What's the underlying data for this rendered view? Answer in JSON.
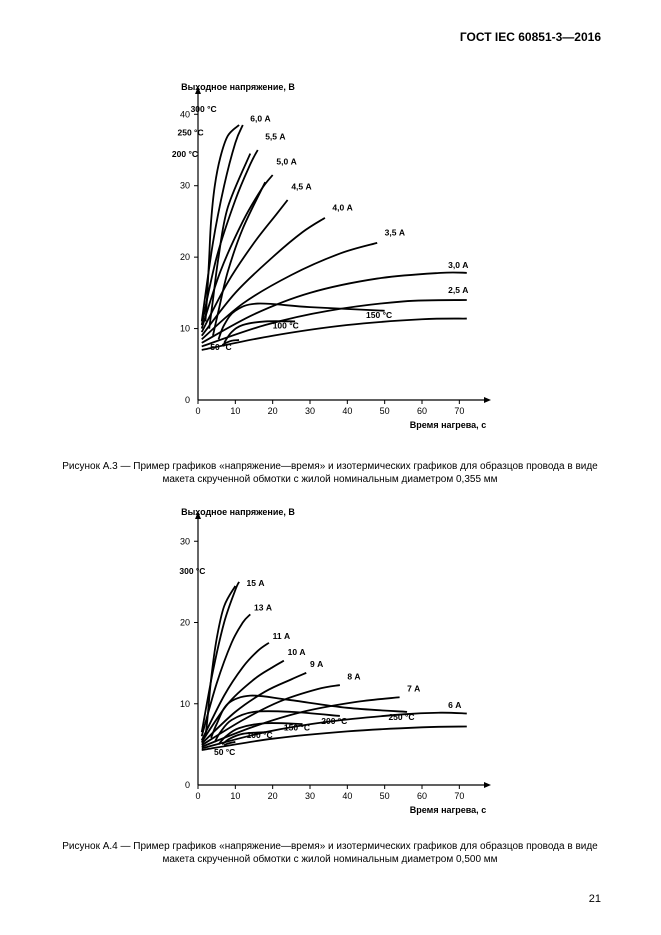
{
  "header": "ГОСТ IEC 60851-3—2016",
  "page_number": "21",
  "chart1": {
    "type": "line",
    "y_axis_label": "Выходное напряжение, В",
    "x_axis_label": "Время нагрева, с",
    "title_fontsize": 9,
    "label_fontsize": 9,
    "xlim": [
      0,
      75
    ],
    "ylim": [
      0,
      42
    ],
    "xticks": [
      0,
      10,
      20,
      30,
      40,
      50,
      60,
      70
    ],
    "yticks": [
      0,
      10,
      20,
      30,
      40
    ],
    "line_color": "#000000",
    "line_width": 1.8,
    "background_color": "#ffffff",
    "caption": "Рисунок А.3 — Пример графиков «напряжение—время» и изотермических графиков для образцов провода в виде макета скрученной обмотки с жилой номинальным диаметром 0,355 мм",
    "current_curves": [
      {
        "label": "6,0 А",
        "label_pos": [
          14,
          39
        ],
        "points": [
          [
            1,
            11
          ],
          [
            4,
            22
          ],
          [
            7,
            30
          ],
          [
            10,
            36
          ],
          [
            12,
            38.5
          ]
        ]
      },
      {
        "label": "5,5 А",
        "label_pos": [
          18,
          36.5
        ],
        "points": [
          [
            1,
            10.5
          ],
          [
            5,
            20
          ],
          [
            10,
            28
          ],
          [
            14,
            33
          ],
          [
            16,
            35
          ]
        ]
      },
      {
        "label": "5,0 А",
        "label_pos": [
          21,
          33
        ],
        "points": [
          [
            1,
            10
          ],
          [
            6,
            18
          ],
          [
            12,
            25
          ],
          [
            17,
            29.5
          ],
          [
            20,
            31.5
          ]
        ]
      },
      {
        "label": "4,5 А",
        "label_pos": [
          25,
          29.5
        ],
        "points": [
          [
            1,
            9.5
          ],
          [
            8,
            16.5
          ],
          [
            15,
            22
          ],
          [
            21,
            26
          ],
          [
            24,
            28
          ]
        ]
      },
      {
        "label": "4,0 А",
        "label_pos": [
          36,
          26.5
        ],
        "points": [
          [
            1,
            9
          ],
          [
            10,
            15
          ],
          [
            20,
            20
          ],
          [
            28,
            23.5
          ],
          [
            34,
            25.5
          ]
        ]
      },
      {
        "label": "3,5 А",
        "label_pos": [
          50,
          23
        ],
        "points": [
          [
            1,
            8.5
          ],
          [
            12,
            13.5
          ],
          [
            25,
            17.5
          ],
          [
            38,
            20.5
          ],
          [
            48,
            22
          ]
        ]
      },
      {
        "label": "3,0 А",
        "label_pos": [
          67,
          18.5
        ],
        "points": [
          [
            1,
            8
          ],
          [
            15,
            12
          ],
          [
            30,
            15
          ],
          [
            48,
            17
          ],
          [
            65,
            17.8
          ],
          [
            72,
            17.8
          ]
        ]
      },
      {
        "label": "2,5 А",
        "label_pos": [
          67,
          15
        ],
        "points": [
          [
            1,
            7.5
          ],
          [
            18,
            10.5
          ],
          [
            35,
            12.5
          ],
          [
            55,
            13.8
          ],
          [
            72,
            14
          ]
        ]
      },
      {
        "label": "",
        "label_pos": [
          0,
          0
        ],
        "points": [
          [
            1,
            7
          ],
          [
            20,
            9
          ],
          [
            40,
            10.5
          ],
          [
            60,
            11.3
          ],
          [
            72,
            11.4
          ]
        ]
      }
    ],
    "temp_curves": [
      {
        "label": "300 °C",
        "label_pos": [
          5,
          40.3
        ],
        "points": [
          [
            11,
            38.5
          ],
          [
            8,
            37
          ],
          [
            6,
            34
          ],
          [
            4.5,
            30
          ],
          [
            3.5,
            25
          ],
          [
            3,
            20
          ],
          [
            2.5,
            15
          ],
          [
            2,
            11
          ]
        ]
      },
      {
        "label": "250 °C",
        "label_pos": [
          1.5,
          37
        ],
        "points": [
          [
            14,
            34.5
          ],
          [
            8,
            27
          ],
          [
            5.5,
            20
          ],
          [
            4,
            14
          ],
          [
            3,
            10
          ]
        ]
      },
      {
        "label": "200 °C",
        "label_pos": [
          0,
          34
        ],
        "points": [
          [
            18,
            30.5
          ],
          [
            12,
            24
          ],
          [
            8,
            18
          ],
          [
            5.5,
            12.5
          ],
          [
            4,
            9
          ]
        ]
      },
      {
        "label": "150 °C",
        "label_pos": [
          52,
          11.5
        ],
        "points": [
          [
            50,
            12.5
          ],
          [
            30,
            13
          ],
          [
            16,
            13.5
          ],
          [
            10,
            12.5
          ],
          [
            7,
            10.5
          ],
          [
            5.5,
            8.5
          ]
        ]
      },
      {
        "label": "100 °C",
        "label_pos": [
          27,
          10
        ],
        "points": [
          [
            26,
            11
          ],
          [
            18,
            11
          ],
          [
            12,
            10.5
          ],
          [
            9,
            9.5
          ],
          [
            7,
            8
          ]
        ]
      },
      {
        "label": "50 °C",
        "label_pos": [
          9,
          7
        ],
        "points": [
          [
            11,
            8.4
          ],
          [
            9,
            8.3
          ],
          [
            7.5,
            8
          ],
          [
            6.5,
            7.7
          ]
        ]
      }
    ]
  },
  "chart2": {
    "type": "line",
    "y_axis_label": "Выходное напряжение, В",
    "x_axis_label": "Время нагрева, с",
    "title_fontsize": 9,
    "label_fontsize": 9,
    "xlim": [
      0,
      75
    ],
    "ylim": [
      0,
      32
    ],
    "xticks": [
      0,
      10,
      20,
      30,
      40,
      50,
      60,
      70
    ],
    "yticks": [
      0,
      10,
      20,
      30
    ],
    "line_color": "#000000",
    "line_width": 1.8,
    "background_color": "#ffffff",
    "caption": "Рисунок А.4 — Пример графиков «напряжение—время» и изотермических графиков для образцов провода в виде макета скрученной обмотки с жилой номинальным диаметром 0,500 мм",
    "current_curves": [
      {
        "label": "15 А",
        "label_pos": [
          13,
          24.5
        ],
        "points": [
          [
            1,
            6.5
          ],
          [
            4,
            14
          ],
          [
            7,
            20
          ],
          [
            10,
            24
          ],
          [
            11,
            25
          ]
        ]
      },
      {
        "label": "13 А",
        "label_pos": [
          15,
          21.5
        ],
        "points": [
          [
            1,
            6
          ],
          [
            5,
            12.5
          ],
          [
            9,
            17.5
          ],
          [
            12,
            20
          ],
          [
            14,
            21
          ]
        ]
      },
      {
        "label": "11 А",
        "label_pos": [
          20,
          18
        ],
        "points": [
          [
            1,
            5.5
          ],
          [
            7,
            11
          ],
          [
            12,
            14.5
          ],
          [
            16,
            16.5
          ],
          [
            19,
            17.5
          ]
        ]
      },
      {
        "label": "10 А",
        "label_pos": [
          24,
          16
        ],
        "points": [
          [
            1,
            5.3
          ],
          [
            8,
            10
          ],
          [
            15,
            13
          ],
          [
            20,
            14.5
          ],
          [
            23,
            15.3
          ]
        ]
      },
      {
        "label": "9 А",
        "label_pos": [
          30,
          14.5
        ],
        "points": [
          [
            1,
            5.1
          ],
          [
            10,
            9
          ],
          [
            18,
            11.5
          ],
          [
            25,
            13
          ],
          [
            29,
            13.8
          ]
        ]
      },
      {
        "label": "8 А",
        "label_pos": [
          40,
          13
        ],
        "points": [
          [
            1,
            4.9
          ],
          [
            12,
            8
          ],
          [
            22,
            10.3
          ],
          [
            32,
            11.8
          ],
          [
            38,
            12.3
          ]
        ]
      },
      {
        "label": "7 А",
        "label_pos": [
          56,
          11.5
        ],
        "points": [
          [
            1,
            4.7
          ],
          [
            15,
            7.2
          ],
          [
            28,
            9
          ],
          [
            42,
            10.2
          ],
          [
            54,
            10.8
          ]
        ]
      },
      {
        "label": "6 А",
        "label_pos": [
          67,
          9.5
        ],
        "points": [
          [
            1,
            4.5
          ],
          [
            18,
            6.5
          ],
          [
            35,
            7.8
          ],
          [
            55,
            8.7
          ],
          [
            65,
            8.9
          ],
          [
            72,
            8.8
          ]
        ]
      },
      {
        "label": "",
        "label_pos": [
          0,
          0
        ],
        "points": [
          [
            1,
            4.3
          ],
          [
            20,
            5.7
          ],
          [
            40,
            6.6
          ],
          [
            60,
            7.1
          ],
          [
            72,
            7.2
          ]
        ]
      }
    ],
    "temp_curves": [
      {
        "label": "300 °C",
        "label_pos": [
          2,
          26
        ],
        "points": [
          [
            10,
            24.5
          ],
          [
            7,
            22
          ],
          [
            5,
            18
          ],
          [
            3.5,
            13
          ],
          [
            2.5,
            8
          ],
          [
            2,
            6
          ]
        ]
      },
      {
        "label": "250 °C",
        "label_pos": [
          58,
          8
        ],
        "points": [
          [
            56,
            9
          ],
          [
            40,
            9.5
          ],
          [
            24,
            10.5
          ],
          [
            14,
            11
          ],
          [
            8,
            10
          ],
          [
            5,
            7.5
          ],
          [
            3.5,
            5.8
          ]
        ]
      },
      {
        "label": "200 °C",
        "label_pos": [
          40,
          7.5
        ],
        "points": [
          [
            38,
            8.5
          ],
          [
            25,
            9
          ],
          [
            15,
            9
          ],
          [
            9,
            8
          ],
          [
            6,
            6.5
          ],
          [
            4.5,
            5.3
          ]
        ]
      },
      {
        "label": "150 °C",
        "label_pos": [
          30,
          6.7
        ],
        "points": [
          [
            28,
            7.5
          ],
          [
            18,
            7.6
          ],
          [
            11,
            7
          ],
          [
            7.5,
            6
          ],
          [
            5.5,
            5
          ]
        ]
      },
      {
        "label": "100 °C",
        "label_pos": [
          20,
          5.8
        ],
        "points": [
          [
            18,
            6.5
          ],
          [
            12,
            6.3
          ],
          [
            8.5,
            5.7
          ],
          [
            6.5,
            5
          ]
        ]
      },
      {
        "label": "50 °C",
        "label_pos": [
          10,
          3.7
        ],
        "points": [
          [
            10,
            5.3
          ],
          [
            8,
            5.1
          ],
          [
            7,
            4.9
          ]
        ]
      }
    ]
  }
}
